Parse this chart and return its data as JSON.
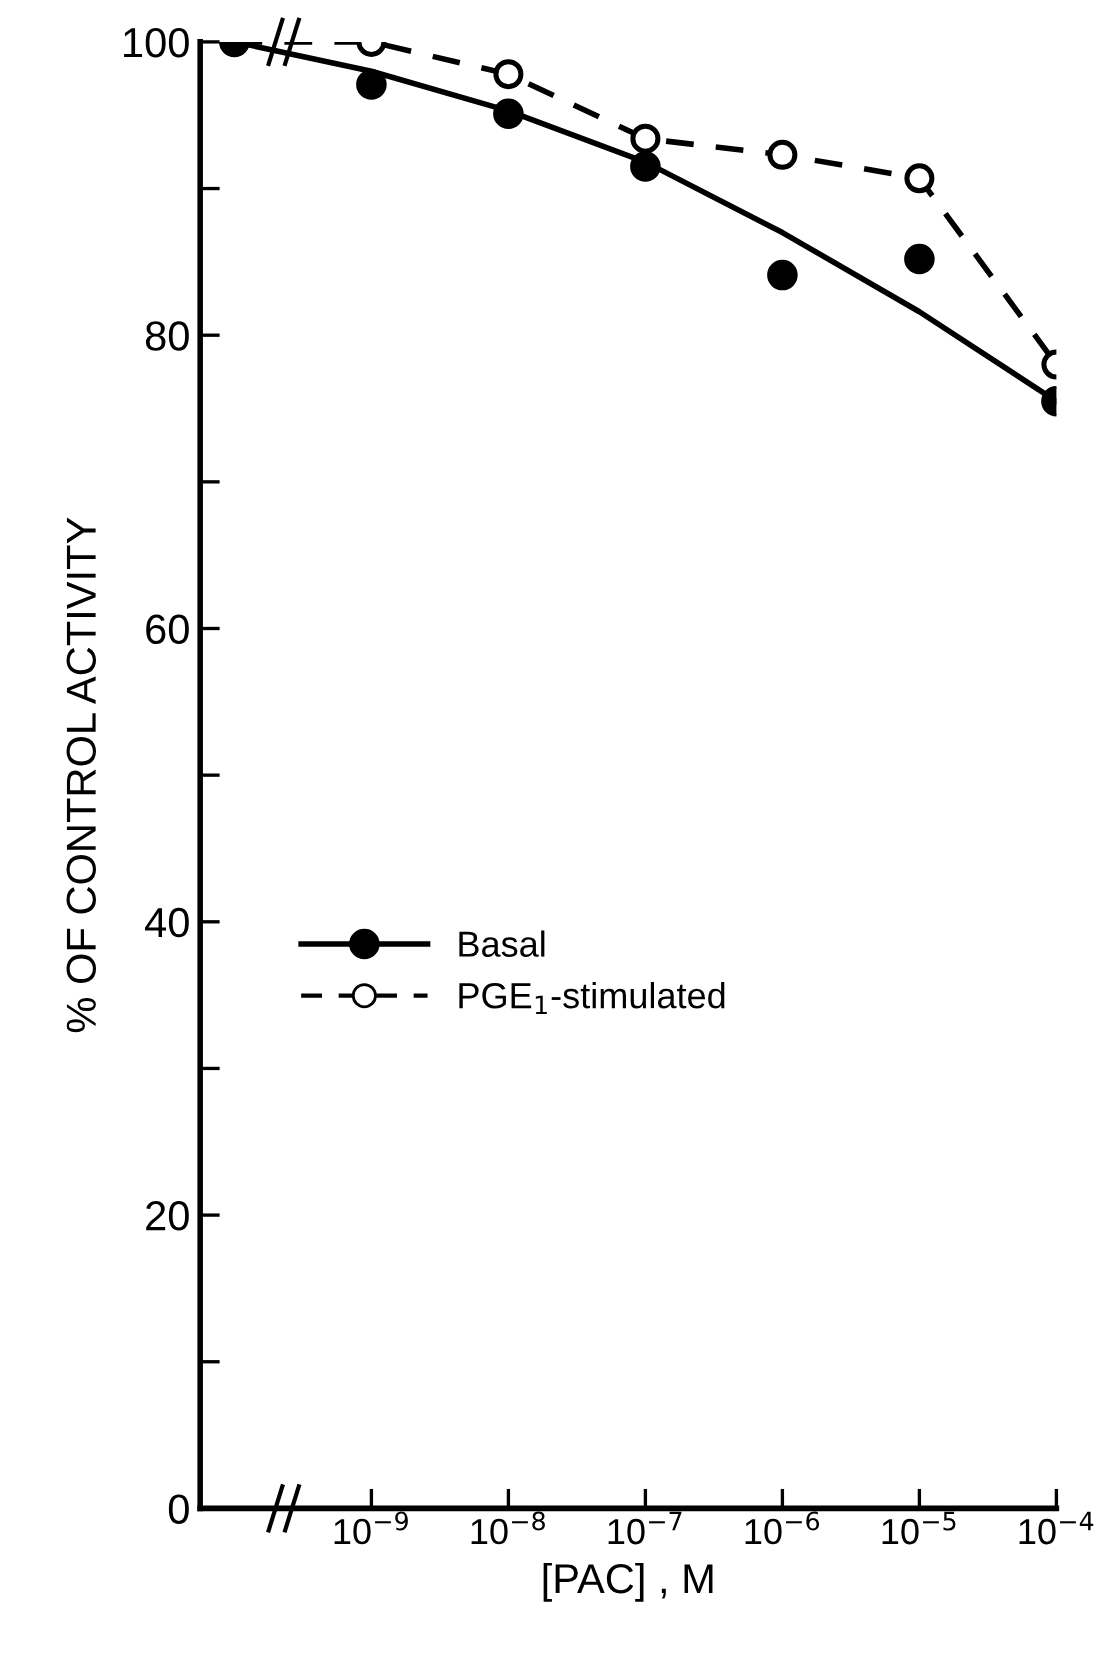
{
  "chart_data": {
    "type": "scatter",
    "xlabel": "[PAC] , M",
    "ylabel": "% OF CONTROL ACTIVITY",
    "categories": [
      null,
      "10$^{−9}$",
      "10$^{−8}$",
      "10$^{−7}$",
      "10$^{−6}$",
      "10$^{−5}$",
      "10$^{−4}$"
    ],
    "series": [
      {
        "name": "Basal",
        "color": "#000000",
        "marker": "circle",
        "values": [
          100,
          97.1,
          95.1,
          91.5,
          84.1,
          85.2,
          75.5
        ]
      },
      {
        "type": "line",
        "color": "#000000",
        "marker": "none",
        "line_style": "solid",
        "values": [
          100,
          98,
          95.3,
          91.8,
          87,
          81.6,
          75.5
        ]
      },
      {
        "name": "PGE$_{1}$-stimulated",
        "type": "line",
        "color": "#000000",
        "marker": "circle",
        "line_style": "dashed",
        "values": [
          100,
          100,
          97.8,
          93.4,
          92.3,
          90.7,
          78
        ]
      }
    ],
    "ylim": [
      0,
      100
    ],
    "yticks": [
      0,
      {
        "value": 10,
        "label": null
      },
      20,
      {
        "value": 30,
        "label": null
      },
      40,
      {
        "value": 50,
        "label": null
      },
      60,
      {
        "value": 70,
        "label": null
      },
      80,
      {
        "value": 90,
        "label": null
      },
      100
    ],
    "legend": "left",
    "grid": false
  }
}
